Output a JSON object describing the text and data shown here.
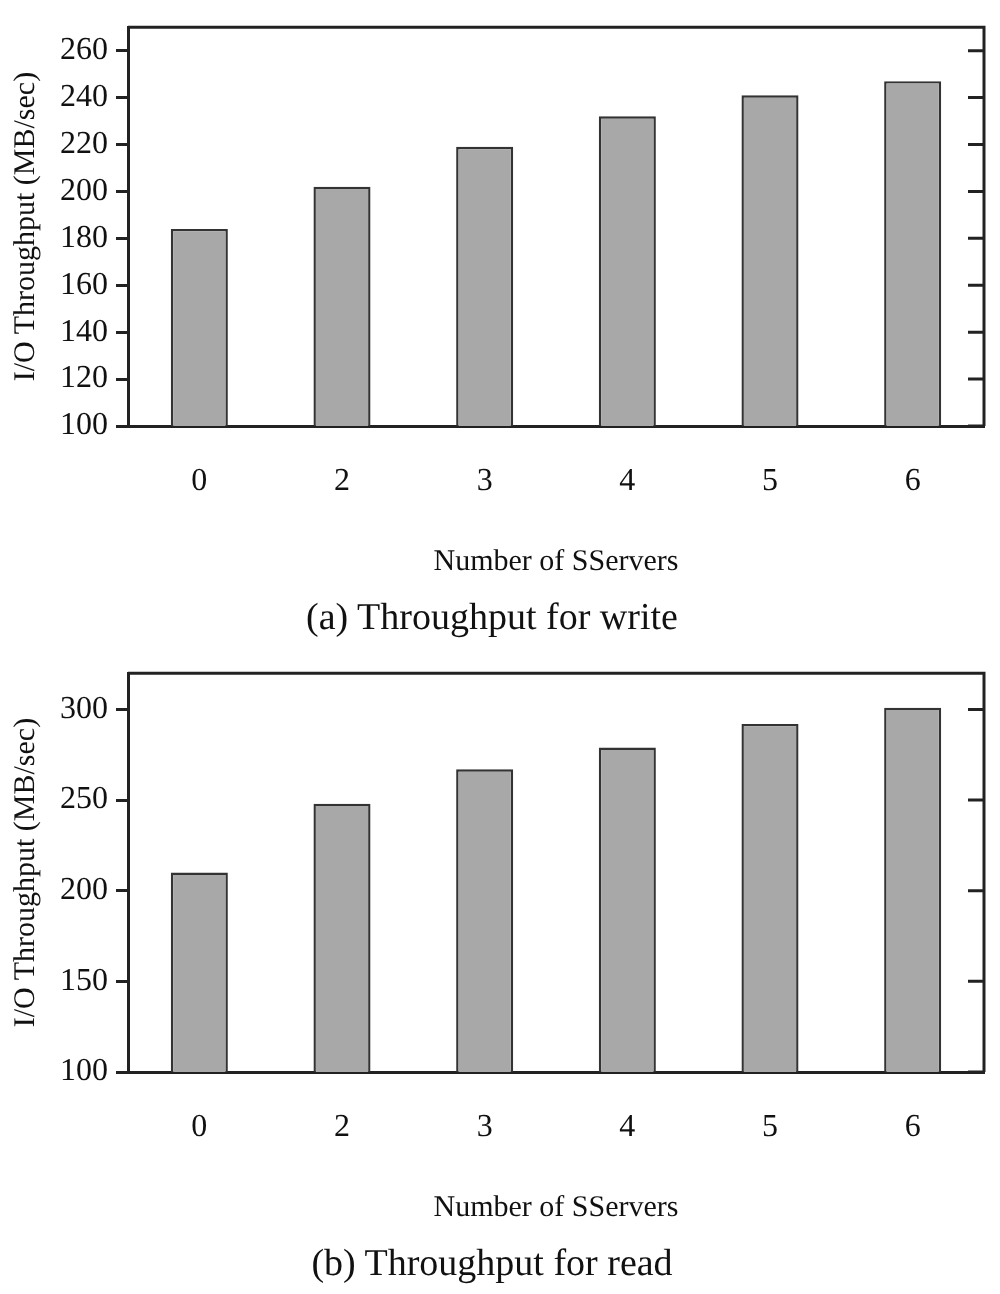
{
  "chart_data": [
    {
      "type": "bar",
      "title": "(a) Throughput for write",
      "xlabel": "Number of SServers",
      "ylabel": "I/O Throughput (MB/sec)",
      "categories": [
        "0",
        "2",
        "3",
        "4",
        "5",
        "6"
      ],
      "values": [
        184,
        202,
        219,
        232,
        241,
        247
      ],
      "color": "#a8a8a8",
      "ylim": [
        100,
        270
      ],
      "yticks": [
        100,
        120,
        140,
        160,
        180,
        200,
        220,
        240,
        260
      ]
    },
    {
      "type": "bar",
      "title": "(b) Throughput for read",
      "xlabel": "Number of SServers",
      "ylabel": "I/O Throughput (MB/sec)",
      "categories": [
        "0",
        "2",
        "3",
        "4",
        "5",
        "6"
      ],
      "values": [
        210,
        248,
        267,
        279,
        292,
        301
      ],
      "color": "#a8a8a8",
      "ylim": [
        100,
        320
      ],
      "yticks": [
        100,
        150,
        200,
        250,
        300
      ]
    }
  ]
}
